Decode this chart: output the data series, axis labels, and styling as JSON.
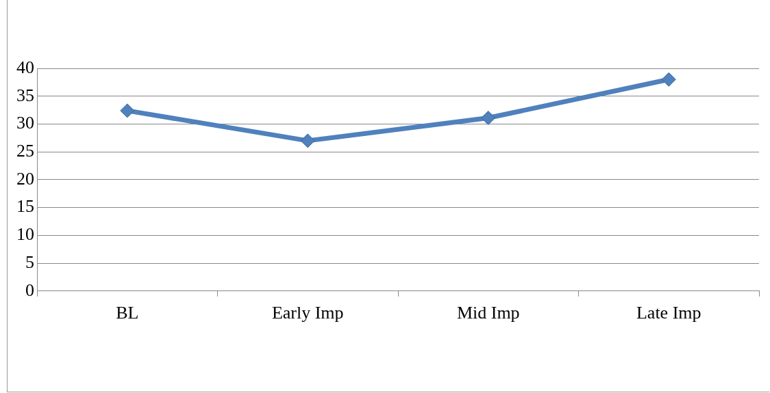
{
  "chart_data": {
    "type": "line",
    "categories": [
      "BL",
      "Early Imp",
      "Mid Imp",
      "Late Imp"
    ],
    "series": [
      {
        "color": "#4f81bd",
        "values": [
          32.4,
          27.0,
          31.1,
          38.0
        ]
      }
    ],
    "ylim": [
      0,
      40
    ],
    "yticks": [
      0,
      5,
      10,
      15,
      20,
      25,
      30,
      35,
      40
    ],
    "grid": "y",
    "legend": false,
    "marker": "diamond",
    "line_style": "solid"
  }
}
